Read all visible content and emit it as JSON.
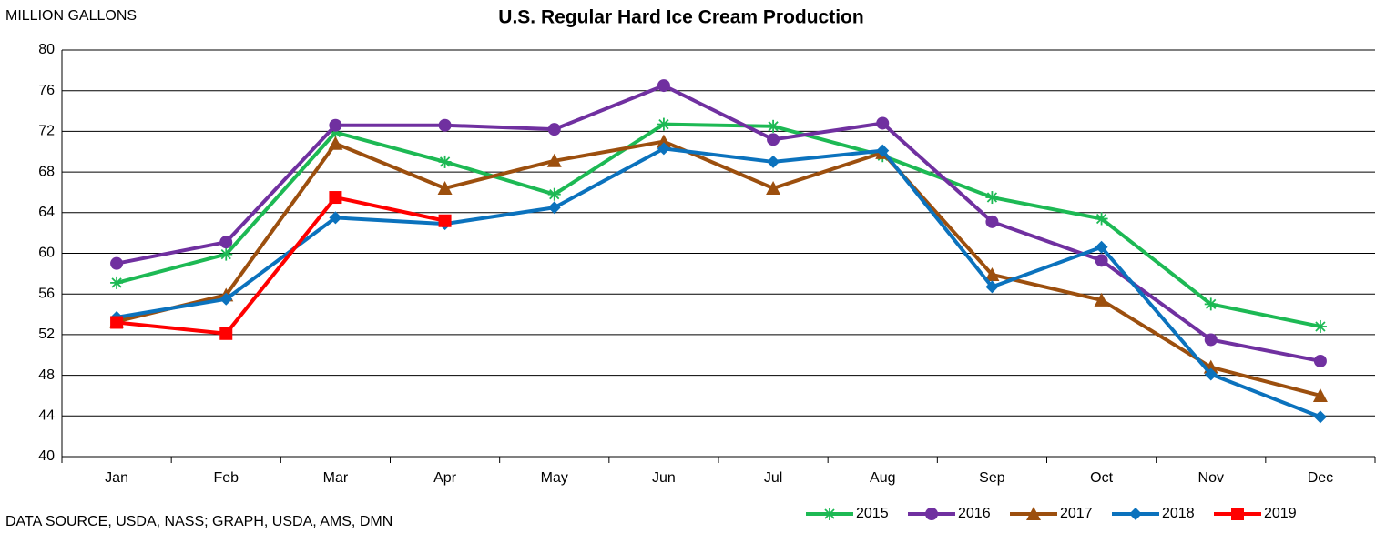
{
  "chart_data": {
    "type": "line",
    "title": "U.S. Regular Hard Ice Cream Production",
    "y_label": "MILLION GALLONS",
    "source": "DATA SOURCE, USDA, NASS; GRAPH, USDA, AMS, DMN",
    "categories": [
      "Jan",
      "Feb",
      "Mar",
      "Apr",
      "May",
      "Jun",
      "Jul",
      "Aug",
      "Sep",
      "Oct",
      "Nov",
      "Dec"
    ],
    "ylim": [
      40,
      80
    ],
    "yticks": [
      40,
      44,
      48,
      52,
      56,
      60,
      64,
      68,
      72,
      76,
      80
    ],
    "grid": true,
    "legend": "bottom-right",
    "series": [
      {
        "name": "2015",
        "color": "#1db954",
        "marker": "star",
        "values": [
          57.1,
          59.9,
          71.9,
          69.0,
          65.8,
          72.7,
          72.5,
          69.6,
          65.5,
          63.4,
          55.0,
          52.8
        ]
      },
      {
        "name": "2016",
        "color": "#7030a0",
        "marker": "circle",
        "values": [
          59.0,
          61.1,
          72.6,
          72.6,
          72.2,
          76.5,
          71.2,
          72.8,
          63.1,
          59.3,
          51.5,
          49.4
        ]
      },
      {
        "name": "2017",
        "color": "#9c4f0e",
        "marker": "triangle",
        "values": [
          53.3,
          55.9,
          70.8,
          66.4,
          69.1,
          71.0,
          66.4,
          69.9,
          57.9,
          55.4,
          48.8,
          46.0
        ]
      },
      {
        "name": "2018",
        "color": "#0b72bd",
        "marker": "diamond",
        "values": [
          53.7,
          55.5,
          63.5,
          62.9,
          64.5,
          70.3,
          69.0,
          70.1,
          56.7,
          60.6,
          48.1,
          43.9
        ]
      },
      {
        "name": "2019",
        "color": "#ff0000",
        "marker": "square",
        "values": [
          53.2,
          52.1,
          65.5,
          63.2,
          null,
          null,
          null,
          null,
          null,
          null,
          null,
          null
        ]
      }
    ]
  }
}
